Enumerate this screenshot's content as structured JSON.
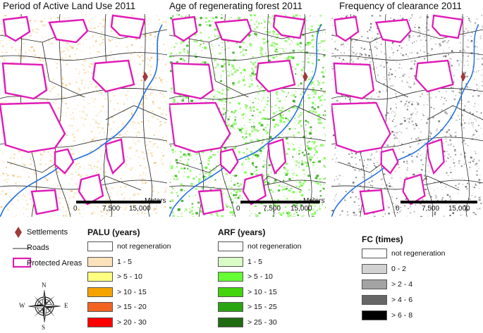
{
  "maps": [
    {
      "title": "Period of Active Land Use 2011",
      "color": "#f6d9a2",
      "scale": {
        "zero": "0",
        "mid": "7,500",
        "max": "15,000",
        "unit": "Meters"
      }
    },
    {
      "title": "Age of regenerating forest 2011",
      "color": "#6fd94a",
      "scale": {
        "zero": "0",
        "mid": "7,500",
        "max": "15,000",
        "unit": "Meters"
      }
    },
    {
      "title": "Frequency of clearance 2011",
      "color": "#9a9a9a",
      "scale": {
        "zero": "0",
        "mid": "7,500",
        "max": "15,000",
        "unit": "Meters"
      }
    }
  ],
  "general_legend": [
    {
      "label": "Settlements",
      "symbol": "diamond",
      "color": "#a33a3a"
    },
    {
      "label": "Roads",
      "symbol": "line",
      "color": "#333333"
    },
    {
      "label": "Protected Areas",
      "symbol": "outline",
      "color": "#e01bb6"
    }
  ],
  "legends": [
    {
      "title": "PALU (years)",
      "items": [
        {
          "label": "not regeneration",
          "color": "#ffffff"
        },
        {
          "label": "1 - 5",
          "color": "#fbe2ba"
        },
        {
          "label": "> 5 - 10",
          "color": "#ffff80"
        },
        {
          "label": "> 10 - 15",
          "color": "#f5a300"
        },
        {
          "label": "> 15 - 20",
          "color": "#f26422"
        },
        {
          "label": "> 20 - 30",
          "color": "#ff0000"
        }
      ]
    },
    {
      "title": "ARF (years)",
      "items": [
        {
          "label": "not regeneration",
          "color": "#ffffff"
        },
        {
          "label": "1 - 5",
          "color": "#d9fcc7"
        },
        {
          "label": "> 5 - 10",
          "color": "#66ff33"
        },
        {
          "label": "> 10 - 15",
          "color": "#44d40d"
        },
        {
          "label": "> 15 - 25",
          "color": "#2aa512"
        },
        {
          "label": "> 25 - 30",
          "color": "#1f6b12"
        }
      ]
    },
    {
      "title": "FC (times)",
      "items": [
        {
          "label": "not regeneration",
          "color": "#ffffff"
        },
        {
          "label": "0 - 2",
          "color": "#d2d2d2"
        },
        {
          "label": "> 2 - 4",
          "color": "#a3a3a3"
        },
        {
          "label": "> 4 - 6",
          "color": "#666666"
        },
        {
          "label": "> 6 - 8",
          "color": "#000000"
        }
      ]
    }
  ],
  "compass": {
    "icon": "compass-rose-icon",
    "n": "N",
    "s": "S",
    "e": "E",
    "w": "W"
  }
}
